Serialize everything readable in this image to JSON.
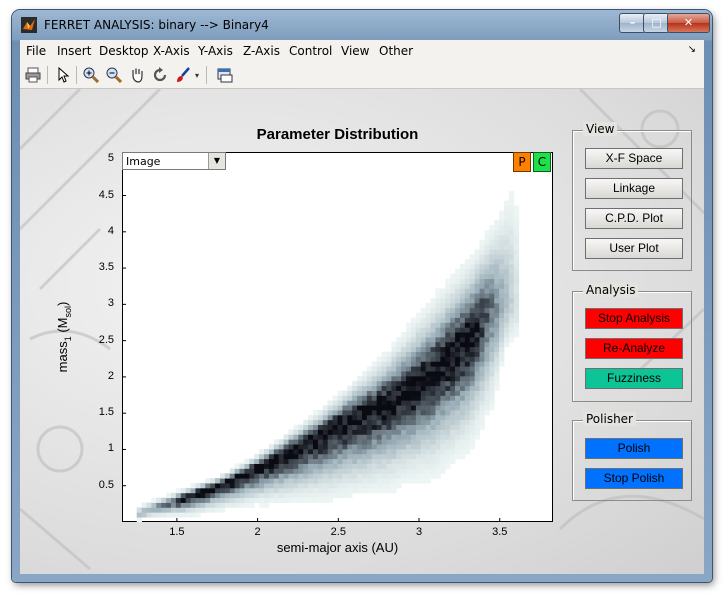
{
  "window": {
    "title": "FERRET ANALYSIS: binary --> Binary4",
    "controls": {
      "minimize": "–",
      "maximize": "□",
      "close": "✕"
    }
  },
  "menu": [
    "File",
    "Insert",
    "Desktop",
    "X-Axis",
    "Y-Axis",
    "Z-Axis",
    "Control",
    "View",
    "Other"
  ],
  "menu_overflow": "↘",
  "toolbar": {
    "icons": [
      "print-icon",
      "pointer-icon",
      "zoom-in-icon",
      "zoom-out-icon",
      "pan-icon",
      "rotate-icon",
      "brush-icon",
      "brush-dropdown-icon",
      "dock-icon"
    ]
  },
  "plot_controls": {
    "select_value": "Image",
    "p_label": "P",
    "c_label": "C",
    "p_color": "#ff8000",
    "c_color": "#1ee04a"
  },
  "panels": {
    "view": {
      "title": "View",
      "buttons": [
        "X-F Space",
        "Linkage",
        "C.P.D. Plot",
        "User Plot"
      ]
    },
    "analysis": {
      "title": "Analysis",
      "buttons": [
        {
          "label": "Stop Analysis",
          "color": "#ff0000"
        },
        {
          "label": "Re-Analyze",
          "color": "#ff0000"
        },
        {
          "label": "Fuzziness",
          "color": "#0dc496"
        }
      ]
    },
    "polisher": {
      "title": "Polisher",
      "buttons": [
        {
          "label": "Polish",
          "color": "#0072ff"
        },
        {
          "label": "Stop Polish",
          "color": "#0072ff"
        }
      ]
    }
  },
  "chart_data": {
    "type": "heatmap",
    "title": "Parameter Distribution",
    "xlabel": "semi-major axis (AU)",
    "ylabel_main": "mass",
    "ylabel_sub": "1",
    "ylabel_unit_open": " (M",
    "ylabel_unit_sub": "sol",
    "ylabel_unit_close": ")",
    "xlim": [
      1.16,
      3.83
    ],
    "ylim": [
      0.0,
      5.1
    ],
    "xticks": [
      "1.5",
      "2",
      "2.5",
      "3",
      "3.5"
    ],
    "yticks": [
      "0.5",
      "1",
      "1.5",
      "2",
      "2.5",
      "3",
      "3.5",
      "4",
      "4.5",
      "5"
    ],
    "colormap": "bone (white = low, black = high)",
    "ridge": {
      "description": "mass1 vs semi-major axis density ridge",
      "x": [
        1.25,
        1.5,
        1.75,
        2.0,
        2.25,
        2.5,
        2.75,
        3.0,
        3.25,
        3.45
      ],
      "y": [
        0.1,
        0.3,
        0.5,
        0.75,
        1.05,
        1.35,
        1.6,
        1.9,
        2.4,
        3.0
      ]
    },
    "upper_envelope": {
      "x": [
        1.3,
        1.6,
        2.0,
        2.4,
        2.8,
        3.1,
        3.35,
        3.5,
        3.58
      ],
      "y": [
        0.15,
        0.4,
        0.9,
        1.5,
        2.2,
        2.9,
        3.5,
        4.1,
        4.6
      ]
    },
    "lower_envelope": {
      "x": [
        1.25,
        1.6,
        2.0,
        2.4,
        2.8,
        3.1,
        3.3,
        3.45,
        3.55
      ],
      "y": [
        0.05,
        0.15,
        0.35,
        0.5,
        0.7,
        0.95,
        1.3,
        1.8,
        2.5
      ]
    },
    "grid": false
  }
}
